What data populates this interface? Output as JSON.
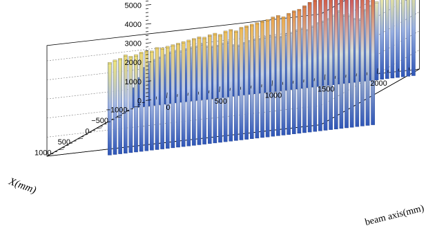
{
  "chart_data": {
    "type": "lego3d",
    "title": "",
    "xlabel": "X(mm)",
    "ylabel": "beam axis(mm)",
    "zlabel": "",
    "x_ticks": [
      1000,
      500,
      0,
      -500,
      -1000
    ],
    "x_tick_labels": [
      "1000",
      "500",
      "0",
      "−500",
      "−1000"
    ],
    "y_ticks": [
      0,
      500,
      1000,
      1500,
      2000
    ],
    "y_tick_labels": [
      "0",
      "500",
      "1000",
      "1500",
      "2000"
    ],
    "z_ticks": [
      0,
      1000,
      2000,
      3000,
      4000,
      5000
    ],
    "z_tick_labels": [
      "0",
      "1000",
      "2000",
      "3000",
      "4000",
      "5000"
    ],
    "xlim": [
      -1300,
      1300
    ],
    "ylim": [
      -200,
      2400
    ],
    "zlim": [
      0,
      5800
    ],
    "color_scale": [
      "#2f56b7",
      "#5a7fd0",
      "#b9c8e8",
      "#e6e8d0",
      "#f0e67a",
      "#f0b04a",
      "#c83c3c"
    ],
    "series": [
      {
        "name": "",
        "x": -950,
        "beam_start": -180,
        "beam_step": 50,
        "z_base": 0,
        "values": [
          1000,
          1500,
          2000,
          2200,
          2350,
          2450,
          2550,
          2650,
          2700,
          2650,
          2720,
          2780,
          2800,
          2880,
          2750,
          2700,
          2720,
          2800,
          2850,
          2650,
          2600,
          2700,
          2780,
          2830,
          2820,
          2880,
          2900,
          2850,
          2800,
          2900,
          2950,
          3050,
          3100,
          3000,
          3150,
          3300,
          3350,
          3450,
          3600,
          3800,
          3550,
          3500,
          3300,
          3250,
          3700,
          3900,
          4050,
          4250,
          4350,
          4400,
          4450,
          4500,
          4650,
          4500
        ]
      },
      {
        "name": "",
        "x": -20,
        "beam_start": -80,
        "beam_step": 50,
        "z_base": -1500,
        "values": [
          3300,
          3400,
          3450,
          3600,
          3500,
          3550,
          3650,
          3700,
          3650,
          3800,
          3750,
          3800,
          3850,
          3900,
          3950,
          4000,
          4050,
          4100,
          4050,
          4150,
          4200,
          4100,
          4250,
          4300,
          4200,
          4350,
          4400,
          4450,
          4500,
          4550,
          4600,
          4700,
          4750,
          4650,
          4800,
          4900,
          4950,
          5100,
          5250,
          5350,
          5450,
          5550,
          5450,
          5600,
          5550,
          5700,
          5800,
          5650,
          5450,
          5500,
          5200
        ]
      }
    ]
  }
}
